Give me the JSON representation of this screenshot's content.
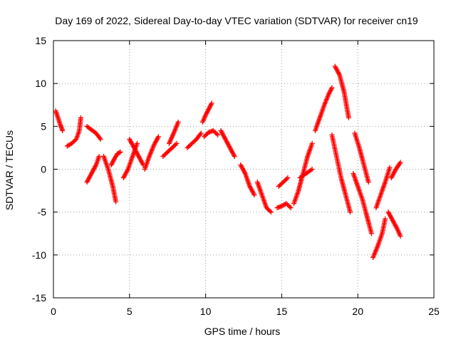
{
  "chart_data": {
    "type": "scatter",
    "title": "Day 169 of 2022, Sidereal Day-to-day VTEC variation (SDTVAR) for receiver cn19",
    "xlabel": "GPS time / hours",
    "ylabel": "SDTVAR / TECUs",
    "xlim": [
      0,
      25
    ],
    "ylim": [
      -15,
      15
    ],
    "xticks": [
      "0",
      "5",
      "10",
      "15",
      "20",
      "25"
    ],
    "yticks": [
      "-15",
      "-10",
      "-5",
      "0",
      "5",
      "10",
      "15"
    ],
    "grid": true,
    "marker": "+",
    "color": "#ff0000",
    "series": [
      {
        "name": "arc-1",
        "x": [
          0.15,
          0.3,
          0.45,
          0.6
        ],
        "y": [
          6.8,
          6.0,
          5.2,
          4.5
        ]
      },
      {
        "name": "arc-2",
        "x": [
          0.9,
          1.2,
          1.5,
          1.7,
          1.8
        ],
        "y": [
          2.7,
          3.0,
          3.5,
          4.5,
          6.0
        ]
      },
      {
        "name": "arc-3",
        "x": [
          2.2,
          2.5,
          2.8,
          3.1
        ],
        "y": [
          5.0,
          4.6,
          4.2,
          3.5
        ]
      },
      {
        "name": "arc-4",
        "x": [
          2.2,
          2.5,
          2.8,
          3.0
        ],
        "y": [
          -1.5,
          -0.5,
          0.5,
          1.5
        ]
      },
      {
        "name": "arc-5",
        "x": [
          3.3,
          3.6,
          3.9,
          4.1
        ],
        "y": [
          1.5,
          0.0,
          -2.0,
          -3.8
        ]
      },
      {
        "name": "arc-6",
        "x": [
          3.8,
          4.0,
          4.2,
          4.4
        ],
        "y": [
          0.5,
          1.2,
          1.8,
          2.0
        ]
      },
      {
        "name": "arc-7",
        "x": [
          4.6,
          4.9,
          5.2,
          5.5
        ],
        "y": [
          -1.0,
          0.0,
          1.5,
          3.0
        ]
      },
      {
        "name": "arc-8",
        "x": [
          5.0,
          5.3,
          5.6,
          5.9
        ],
        "y": [
          3.5,
          2.5,
          1.5,
          0.5
        ]
      },
      {
        "name": "arc-9",
        "x": [
          6.0,
          6.3,
          6.6,
          6.9
        ],
        "y": [
          0.0,
          1.5,
          2.8,
          3.8
        ]
      },
      {
        "name": "arc-10",
        "x": [
          7.2,
          7.5,
          7.8,
          8.1
        ],
        "y": [
          1.5,
          2.0,
          2.5,
          3.0
        ]
      },
      {
        "name": "arc-11",
        "x": [
          7.6,
          7.9,
          8.2
        ],
        "y": [
          3.0,
          4.2,
          5.5
        ]
      },
      {
        "name": "arc-12",
        "x": [
          8.8,
          9.1,
          9.4,
          9.7
        ],
        "y": [
          2.5,
          3.0,
          3.5,
          4.2
        ]
      },
      {
        "name": "arc-13",
        "x": [
          9.8,
          10.0,
          10.2,
          10.4
        ],
        "y": [
          5.5,
          6.3,
          7.0,
          7.7
        ]
      },
      {
        "name": "arc-14",
        "x": [
          9.9,
          10.2,
          10.5,
          10.8
        ],
        "y": [
          3.8,
          4.3,
          4.5,
          4.0
        ]
      },
      {
        "name": "arc-15",
        "x": [
          11.0,
          11.3,
          11.6,
          11.9
        ],
        "y": [
          4.5,
          3.5,
          2.5,
          1.5
        ]
      },
      {
        "name": "arc-16",
        "x": [
          12.3,
          12.6,
          12.9,
          13.2
        ],
        "y": [
          0.5,
          -0.5,
          -2.0,
          -3.0
        ]
      },
      {
        "name": "arc-17",
        "x": [
          13.4,
          13.7,
          14.0,
          14.3
        ],
        "y": [
          -1.5,
          -3.0,
          -4.5,
          -5.0
        ]
      },
      {
        "name": "arc-18",
        "x": [
          14.7,
          15.0,
          15.3,
          15.6
        ],
        "y": [
          -4.5,
          -4.3,
          -4.0,
          -4.5
        ]
      },
      {
        "name": "arc-19",
        "x": [
          14.8,
          15.1,
          15.4
        ],
        "y": [
          -2.0,
          -1.5,
          -1.0
        ]
      },
      {
        "name": "arc-20",
        "x": [
          15.8,
          16.1,
          16.4,
          16.7,
          17.0
        ],
        "y": [
          -4.0,
          -2.5,
          -0.5,
          1.5,
          3.0
        ]
      },
      {
        "name": "arc-21",
        "x": [
          16.2,
          16.6,
          17.0
        ],
        "y": [
          -1.0,
          -0.5,
          0.0
        ]
      },
      {
        "name": "arc-22",
        "x": [
          17.2,
          17.5,
          17.8,
          18.1,
          18.3
        ],
        "y": [
          4.5,
          6.0,
          7.5,
          8.8,
          9.5
        ]
      },
      {
        "name": "arc-23",
        "x": [
          18.5,
          18.8,
          19.1,
          19.4
        ],
        "y": [
          12.0,
          11.0,
          9.0,
          6.0
        ]
      },
      {
        "name": "arc-24",
        "x": [
          18.3,
          18.6,
          18.9,
          19.2,
          19.5
        ],
        "y": [
          4.0,
          1.5,
          -1.0,
          -3.0,
          -5.0
        ]
      },
      {
        "name": "arc-25",
        "x": [
          19.7,
          20.0,
          20.3,
          20.6,
          20.9
        ],
        "y": [
          -0.5,
          -2.0,
          -3.5,
          -5.5,
          -7.5
        ]
      },
      {
        "name": "arc-26",
        "x": [
          19.8,
          20.1,
          20.4,
          20.7
        ],
        "y": [
          4.2,
          2.5,
          0.5,
          -1.5
        ]
      },
      {
        "name": "arc-27",
        "x": [
          21.0,
          21.3,
          21.6,
          21.8
        ],
        "y": [
          -10.3,
          -9.0,
          -7.5,
          -5.8
        ]
      },
      {
        "name": "arc-28",
        "x": [
          21.2,
          21.5,
          21.8,
          22.1
        ],
        "y": [
          -4.5,
          -3.0,
          -1.5,
          0.2
        ]
      },
      {
        "name": "arc-29",
        "x": [
          22.0,
          22.3,
          22.6,
          22.8
        ],
        "y": [
          -5.0,
          -6.0,
          -7.0,
          -7.8
        ]
      },
      {
        "name": "arc-30",
        "x": [
          22.2,
          22.5,
          22.8
        ],
        "y": [
          -1.0,
          0.0,
          0.8
        ]
      }
    ]
  }
}
